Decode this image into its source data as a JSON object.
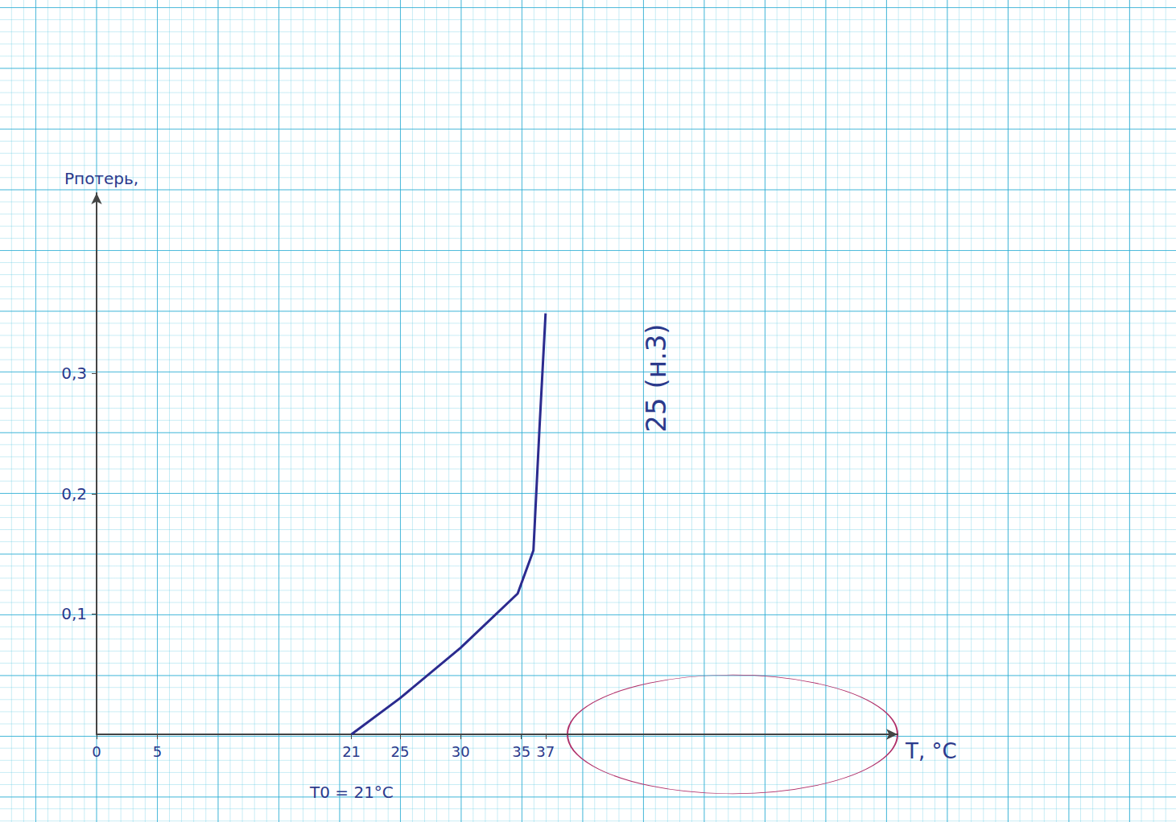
{
  "chart_data": {
    "type": "line",
    "x_label": "T, °C",
    "y_label": "Pпотерь,",
    "x": [
      21,
      25,
      30,
      34.7,
      36,
      36.5,
      37
    ],
    "values": [
      0,
      0.03,
      0.072,
      0.117,
      0.153,
      0.255,
      0.35
    ],
    "color": "#2b2b8f",
    "xlim": [
      0,
      66
    ],
    "xticks": [
      0,
      5,
      21,
      25,
      30,
      35,
      37
    ],
    "ylim": [
      0,
      0.45
    ],
    "yticks": [
      {
        "value": 0.1,
        "label": "0,1"
      },
      {
        "value": 0.2,
        "label": "0,2"
      },
      {
        "value": 0.3,
        "label": "0,3"
      }
    ],
    "grid": true,
    "marker": "none",
    "annotations": [
      {
        "text": "T0 = 21°C"
      },
      {
        "text": "25 (н.3)"
      }
    ]
  }
}
